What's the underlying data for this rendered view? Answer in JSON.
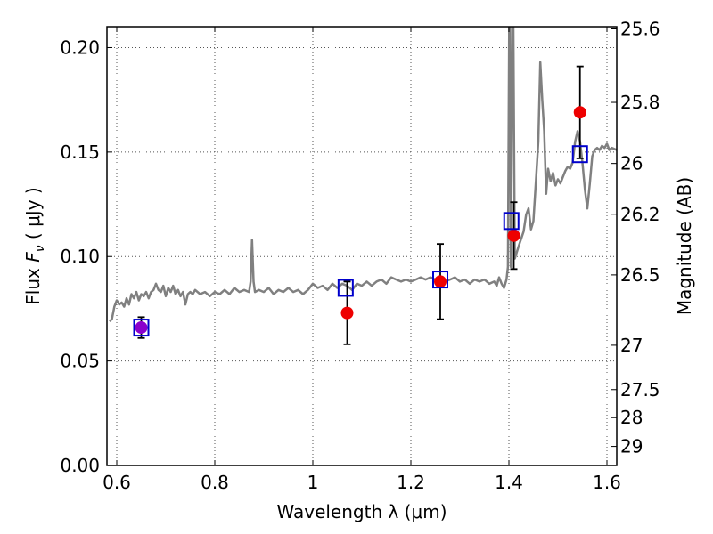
{
  "chart_data": {
    "type": "scatter",
    "xlabel": "Wavelength  λ (μm)",
    "ylabel": "Flux  F_ν  ( μJy )",
    "ylabel_parts": {
      "pre": "Flux  ",
      "sym": "F",
      "sub": "ν",
      "post": "  ( μJy )"
    },
    "ylabel_right": "Magnitude (AB)",
    "xlim": [
      0.58,
      1.62
    ],
    "ylim": [
      0.0,
      0.21
    ],
    "grid": true,
    "x_ticks": [
      0.6,
      0.8,
      1.0,
      1.2,
      1.4,
      1.6
    ],
    "x_tick_labels": [
      "0.6",
      "0.8",
      "1",
      "1.2",
      "1.4",
      "1.6"
    ],
    "y_ticks": [
      0.0,
      0.05,
      0.1,
      0.15,
      0.2
    ],
    "y_tick_labels": [
      "0.00",
      "0.05",
      "0.10",
      "0.15",
      "0.20"
    ],
    "right_ticks": [
      {
        "label": "25.6",
        "value": 25.6
      },
      {
        "label": "25.8",
        "value": 25.8
      },
      {
        "label": "26",
        "value": 26.0
      },
      {
        "label": "26.2",
        "value": 26.2
      },
      {
        "label": "26.5",
        "value": 26.5
      },
      {
        "label": "27",
        "value": 27.0
      },
      {
        "label": "27.5",
        "value": 27.5
      },
      {
        "label": "28",
        "value": 28.0
      },
      {
        "label": "29",
        "value": 29.0
      }
    ],
    "observed_points": [
      {
        "x": 0.65,
        "y": 0.066,
        "err": 0.005,
        "color": "#8b00cc"
      },
      {
        "x": 1.07,
        "y": 0.073,
        "err": 0.015,
        "color": "#ee0000"
      },
      {
        "x": 1.26,
        "y": 0.088,
        "err": 0.018,
        "color": "#ee0000"
      },
      {
        "x": 1.41,
        "y": 0.11,
        "err": 0.016,
        "color": "#ee0000"
      },
      {
        "x": 1.545,
        "y": 0.169,
        "err": 0.022,
        "color": "#ee0000"
      }
    ],
    "model_points": [
      {
        "x": 0.65,
        "y": 0.066
      },
      {
        "x": 1.067,
        "y": 0.085
      },
      {
        "x": 1.26,
        "y": 0.089
      },
      {
        "x": 1.405,
        "y": 0.117
      },
      {
        "x": 1.545,
        "y": 0.149
      }
    ],
    "spectrum": [
      [
        0.585,
        0.069
      ],
      [
        0.59,
        0.07
      ],
      [
        0.595,
        0.076
      ],
      [
        0.6,
        0.079
      ],
      [
        0.605,
        0.077
      ],
      [
        0.61,
        0.078
      ],
      [
        0.615,
        0.076
      ],
      [
        0.62,
        0.08
      ],
      [
        0.625,
        0.077
      ],
      [
        0.63,
        0.082
      ],
      [
        0.635,
        0.08
      ],
      [
        0.64,
        0.083
      ],
      [
        0.645,
        0.079
      ],
      [
        0.65,
        0.082
      ],
      [
        0.655,
        0.081
      ],
      [
        0.66,
        0.083
      ],
      [
        0.665,
        0.08
      ],
      [
        0.67,
        0.083
      ],
      [
        0.675,
        0.084
      ],
      [
        0.68,
        0.087
      ],
      [
        0.685,
        0.084
      ],
      [
        0.69,
        0.083
      ],
      [
        0.695,
        0.086
      ],
      [
        0.7,
        0.081
      ],
      [
        0.705,
        0.085
      ],
      [
        0.71,
        0.083
      ],
      [
        0.715,
        0.086
      ],
      [
        0.72,
        0.082
      ],
      [
        0.725,
        0.084
      ],
      [
        0.73,
        0.081
      ],
      [
        0.735,
        0.083
      ],
      [
        0.74,
        0.077
      ],
      [
        0.745,
        0.082
      ],
      [
        0.75,
        0.083
      ],
      [
        0.755,
        0.082
      ],
      [
        0.76,
        0.084
      ],
      [
        0.77,
        0.082
      ],
      [
        0.78,
        0.083
      ],
      [
        0.79,
        0.081
      ],
      [
        0.8,
        0.083
      ],
      [
        0.81,
        0.082
      ],
      [
        0.82,
        0.084
      ],
      [
        0.83,
        0.082
      ],
      [
        0.84,
        0.085
      ],
      [
        0.85,
        0.083
      ],
      [
        0.86,
        0.084
      ],
      [
        0.87,
        0.083
      ],
      [
        0.873,
        0.088
      ],
      [
        0.876,
        0.108
      ],
      [
        0.879,
        0.088
      ],
      [
        0.882,
        0.083
      ],
      [
        0.89,
        0.084
      ],
      [
        0.9,
        0.083
      ],
      [
        0.91,
        0.085
      ],
      [
        0.92,
        0.082
      ],
      [
        0.93,
        0.084
      ],
      [
        0.94,
        0.083
      ],
      [
        0.95,
        0.085
      ],
      [
        0.96,
        0.083
      ],
      [
        0.97,
        0.084
      ],
      [
        0.98,
        0.082
      ],
      [
        0.99,
        0.084
      ],
      [
        1.0,
        0.087
      ],
      [
        1.01,
        0.085
      ],
      [
        1.02,
        0.086
      ],
      [
        1.03,
        0.084
      ],
      [
        1.04,
        0.087
      ],
      [
        1.05,
        0.085
      ],
      [
        1.06,
        0.087
      ],
      [
        1.07,
        0.086
      ],
      [
        1.08,
        0.084
      ],
      [
        1.09,
        0.087
      ],
      [
        1.1,
        0.086
      ],
      [
        1.11,
        0.088
      ],
      [
        1.12,
        0.086
      ],
      [
        1.13,
        0.088
      ],
      [
        1.14,
        0.089
      ],
      [
        1.15,
        0.087
      ],
      [
        1.16,
        0.09
      ],
      [
        1.17,
        0.089
      ],
      [
        1.18,
        0.088
      ],
      [
        1.19,
        0.089
      ],
      [
        1.2,
        0.088
      ],
      [
        1.21,
        0.089
      ],
      [
        1.22,
        0.09
      ],
      [
        1.23,
        0.089
      ],
      [
        1.24,
        0.09
      ],
      [
        1.25,
        0.089
      ],
      [
        1.26,
        0.09
      ],
      [
        1.27,
        0.088
      ],
      [
        1.28,
        0.089
      ],
      [
        1.29,
        0.09
      ],
      [
        1.3,
        0.088
      ],
      [
        1.31,
        0.089
      ],
      [
        1.32,
        0.087
      ],
      [
        1.33,
        0.089
      ],
      [
        1.34,
        0.088
      ],
      [
        1.35,
        0.089
      ],
      [
        1.36,
        0.087
      ],
      [
        1.37,
        0.088
      ],
      [
        1.375,
        0.086
      ],
      [
        1.38,
        0.09
      ],
      [
        1.385,
        0.087
      ],
      [
        1.39,
        0.085
      ],
      [
        1.395,
        0.089
      ],
      [
        1.398,
        0.095
      ],
      [
        1.4005,
        0.21
      ],
      [
        1.402,
        0.21
      ],
      [
        1.404,
        0.095
      ],
      [
        1.407,
        0.21
      ],
      [
        1.409,
        0.21
      ],
      [
        1.412,
        0.099
      ],
      [
        1.42,
        0.105
      ],
      [
        1.43,
        0.112
      ],
      [
        1.435,
        0.12
      ],
      [
        1.44,
        0.123
      ],
      [
        1.445,
        0.113
      ],
      [
        1.45,
        0.117
      ],
      [
        1.455,
        0.136
      ],
      [
        1.46,
        0.155
      ],
      [
        1.464,
        0.193
      ],
      [
        1.468,
        0.175
      ],
      [
        1.472,
        0.16
      ],
      [
        1.476,
        0.13
      ],
      [
        1.48,
        0.142
      ],
      [
        1.485,
        0.136
      ],
      [
        1.49,
        0.14
      ],
      [
        1.495,
        0.134
      ],
      [
        1.5,
        0.137
      ],
      [
        1.505,
        0.135
      ],
      [
        1.51,
        0.138
      ],
      [
        1.515,
        0.141
      ],
      [
        1.52,
        0.143
      ],
      [
        1.525,
        0.142
      ],
      [
        1.53,
        0.145
      ],
      [
        1.535,
        0.155
      ],
      [
        1.54,
        0.16
      ],
      [
        1.545,
        0.155
      ],
      [
        1.55,
        0.145
      ],
      [
        1.555,
        0.132
      ],
      [
        1.56,
        0.123
      ],
      [
        1.565,
        0.135
      ],
      [
        1.57,
        0.148
      ],
      [
        1.575,
        0.151
      ],
      [
        1.58,
        0.152
      ],
      [
        1.585,
        0.151
      ],
      [
        1.59,
        0.153
      ],
      [
        1.595,
        0.152
      ],
      [
        1.6,
        0.154
      ],
      [
        1.605,
        0.151
      ],
      [
        1.61,
        0.152
      ],
      [
        1.62,
        0.151
      ]
    ],
    "colors": {
      "spectrum": "#808080",
      "model_marker": "#0000cc",
      "error_bar": "#000000",
      "grid": "#555555"
    }
  }
}
